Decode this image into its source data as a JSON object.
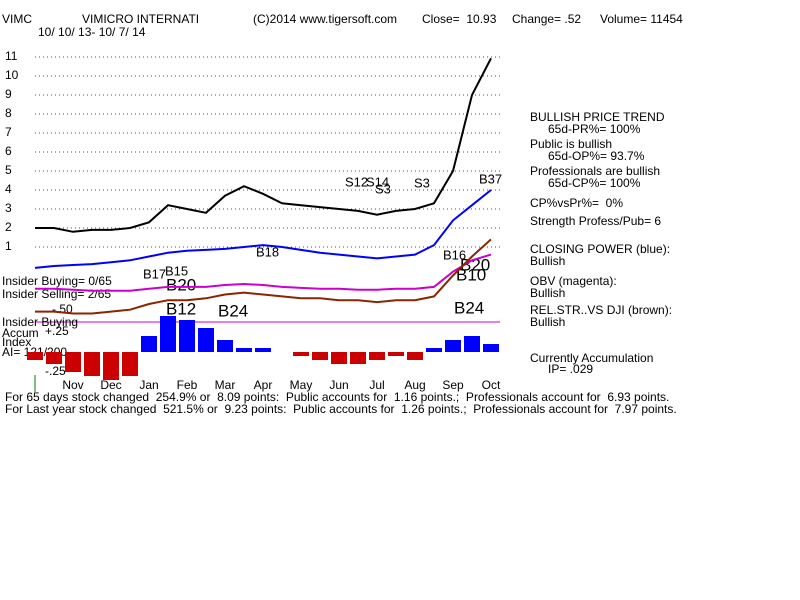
{
  "header": {
    "symbol": "VIMC",
    "name": "VIMICRO INTERNATI",
    "copyright": "(C)2014 www.tigersoft.com",
    "close": "Close=  10.93",
    "change": "Change= .52",
    "volume": "Volume= 11454",
    "date_range": "10/ 10/ 13- 10/ 7/ 14"
  },
  "insider": {
    "buying": "Insider Buying= 0/65",
    "selling": "Insider Selling= 2/65"
  },
  "accum_panel": {
    "title_lines": [
      "Insider Buying",
      "Accum",
      "Index"
    ],
    "ai": "AI= 121/200",
    "level": "-.50"
  },
  "signals": [
    "B17",
    "B15",
    "B20",
    "B12",
    "B24",
    "B18",
    "S12",
    "S14",
    "S3",
    "S3",
    "B37",
    "B16",
    "B10",
    "B20",
    "B24"
  ],
  "sidebar": {
    "trend": "BULLISH PRICE TREND",
    "pr": "65d-PR%= 100%",
    "public": "Public is bullish",
    "op": "65d-OP%= 93.7%",
    "professionals": "Professionals are bullish",
    "cp": "65d-CP%= 100%",
    "cp_vs_pr": "CP%vsPr%=  0%",
    "strength": "Strength Profess/Pub= 6",
    "cp_status": "Bullish",
    "obv_status": "Bullish",
    "rs_status": "Bullish",
    "accumulation": "Currently Accumulation",
    "ip": "IP= .029"
  },
  "summary": [
    "For 65 days stock changed  254.9% or  8.09 points:  Public accounts for  1.16 points.;  Professionals account for  6.93 points.",
    "For Last year stock changed  521.5% or  9.23 points:  Public accounts for  1.26 points.;  Professionals account for  7.97 points."
  ],
  "chart_data": [
    {
      "type": "line",
      "categories": [
        null,
        null,
        "Nov",
        null,
        "Dec",
        null,
        "Jan",
        null,
        "Feb",
        null,
        "Mar",
        null,
        "Apr",
        null,
        "May",
        null,
        "Jun",
        null,
        "Jul",
        null,
        "Aug",
        null,
        "Sep",
        null,
        "Oct"
      ],
      "ylim": [
        -6,
        12
      ],
      "yticks": [
        1,
        2,
        3,
        4,
        5,
        6,
        7,
        8,
        9,
        10,
        11
      ],
      "grid": true,
      "grid_color": "#008000",
      "series": [
        {
          "color": "#000000",
          "values": [
            2.0,
            2.0,
            1.8,
            1.9,
            1.9,
            2.0,
            2.3,
            3.2,
            3.0,
            2.8,
            3.7,
            4.2,
            3.8,
            3.3,
            3.2,
            3.1,
            3.0,
            2.9,
            2.7,
            2.9,
            3.0,
            3.3,
            5.0,
            9.0,
            10.93
          ]
        },
        {
          "name": "CLOSING POWER (blue):",
          "color": "#0000ff",
          "values": [
            -0.1,
            0.0,
            0.05,
            0.1,
            0.2,
            0.3,
            0.5,
            0.7,
            0.8,
            0.85,
            0.9,
            1.0,
            1.1,
            1.0,
            0.85,
            0.7,
            0.6,
            0.5,
            0.4,
            0.5,
            0.6,
            1.1,
            2.4,
            3.2,
            4.0
          ]
        },
        {
          "name": "OBV (magenta):",
          "color": "#cc00cc",
          "values": [
            -1.2,
            -1.2,
            -1.25,
            -1.3,
            -1.3,
            -1.3,
            -1.2,
            -1.1,
            -1.1,
            -1.1,
            -1.0,
            -0.95,
            -1.0,
            -1.1,
            -1.15,
            -1.2,
            -1.2,
            -1.25,
            -1.25,
            -1.2,
            -1.2,
            -1.1,
            -0.3,
            0.3,
            0.6
          ]
        },
        {
          "name": "REL.STR..VS DJI (brown):",
          "color": "#8b2500",
          "values": [
            -2.4,
            -2.4,
            -2.5,
            -2.5,
            -2.4,
            -2.3,
            -2.0,
            -1.8,
            -1.8,
            -1.7,
            -1.5,
            -1.4,
            -1.5,
            -1.6,
            -1.7,
            -1.7,
            -1.8,
            -1.8,
            -1.9,
            -1.8,
            -1.8,
            -1.6,
            -0.5,
            0.5,
            1.4
          ]
        }
      ]
    },
    {
      "type": "bar",
      "ylim": [
        -0.5,
        0.5
      ],
      "yticks": [
        {
          "value": 0.25,
          "label": "+.25"
        },
        {
          "value": -0.25,
          "label": "-.25"
        }
      ],
      "pos_color": "#0000ff",
      "neg_color": "#cc0000",
      "values": [
        -0.1,
        -0.15,
        -0.25,
        -0.3,
        -0.35,
        -0.3,
        0.2,
        0.45,
        0.4,
        0.3,
        0.15,
        0.05,
        0.05,
        0.0,
        -0.05,
        -0.1,
        -0.15,
        -0.15,
        -0.1,
        -0.05,
        -0.1,
        0.05,
        0.15,
        0.2,
        0.1
      ]
    }
  ]
}
